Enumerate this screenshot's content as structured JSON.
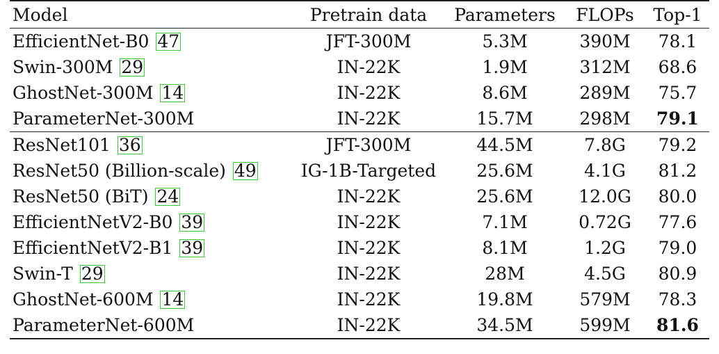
{
  "columns": [
    "Model",
    "Pretrain data",
    "Parameters",
    "FLOPs",
    "Top-1"
  ],
  "group1": [
    {
      "model": "EfficientNet-B0",
      "ref": "47",
      "pretrain": "JFT-300M",
      "params": "5.3M",
      "flops": "390M",
      "top1": "78.1"
    },
    {
      "model": "Swin-300M",
      "ref": "29",
      "pretrain": "IN-22K",
      "params": "1.9M",
      "flops": "312M",
      "top1": "68.6"
    },
    {
      "model": "GhostNet-300M",
      "ref": "14",
      "pretrain": "IN-22K",
      "params": "8.6M",
      "flops": "289M",
      "top1": "75.7"
    },
    {
      "model": "ParameterNet-300M",
      "ref": "",
      "pretrain": "IN-22K",
      "params": "15.7M",
      "flops": "298M",
      "top1": "79.1",
      "bold": true
    }
  ],
  "group2": [
    {
      "model": "ResNet101",
      "ref": "36",
      "pretrain": "JFT-300M",
      "params": "44.5M",
      "flops": "7.8G",
      "top1": "79.2"
    },
    {
      "model": "ResNet50 (Billion-scale)",
      "ref": "49",
      "pretrain": "IG-1B-Targeted",
      "params": "25.6M",
      "flops": "4.1G",
      "top1": "81.2"
    },
    {
      "model": "ResNet50 (BiT)",
      "ref": "24",
      "pretrain": "IN-22K",
      "params": "25.6M",
      "flops": "12.0G",
      "top1": "80.0"
    },
    {
      "model": "EfficientNetV2-B0",
      "ref": "39",
      "pretrain": "IN-22K",
      "params": "7.1M",
      "flops": "0.72G",
      "top1": "77.6"
    },
    {
      "model": "EfficientNetV2-B1",
      "ref": "39",
      "pretrain": "IN-22K",
      "params": "8.1M",
      "flops": "1.2G",
      "top1": "79.0"
    },
    {
      "model": "Swin-T",
      "ref": "29",
      "pretrain": "IN-22K",
      "params": "28M",
      "flops": "4.5G",
      "top1": "80.9"
    },
    {
      "model": "GhostNet-600M",
      "ref": "14",
      "pretrain": "IN-22K",
      "params": "19.8M",
      "flops": "579M",
      "top1": "78.3"
    },
    {
      "model": "ParameterNet-600M",
      "ref": "",
      "pretrain": "IN-22K",
      "params": "34.5M",
      "flops": "599M",
      "top1": "81.6",
      "bold": true
    }
  ],
  "colors": {
    "ref_box": "#3ec63e",
    "rule": "#222222"
  }
}
